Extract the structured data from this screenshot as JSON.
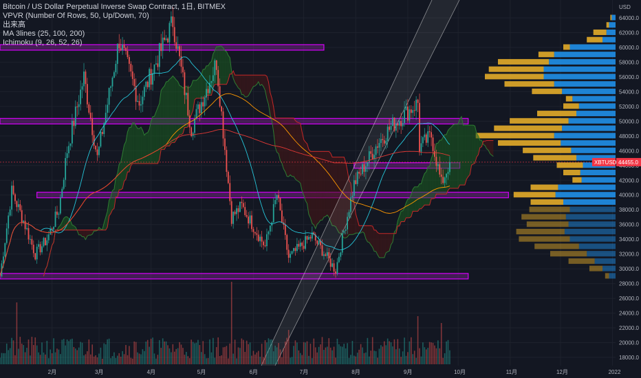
{
  "legend": {
    "title": "Bitcoin / US Dollar Perpetual Inverse Swap Contract, 1日, BITMEX",
    "vpvr": "VPVR (Number Of Rows, 50, Up/Down, 70)",
    "volume": "出来高",
    "ma": "MA 3lines (25, 100, 200)",
    "ichimoku": "Ichimoku (9, 26, 52, 26)"
  },
  "colors": {
    "background": "#131722",
    "up": "#26a69a",
    "down": "#ef5350",
    "zone": "#9c27b0",
    "vpvr_up": "#2196f3",
    "vpvr_down": "#f0b429",
    "ma25": "#26c6da",
    "ma100": "#ff9800",
    "ma200": "#e53935",
    "cloud_bull": "#1b5e20",
    "cloud_bear": "#4a1515",
    "channel": "#e0e0e0",
    "current_price_bg": "#f23645"
  },
  "chart_data": {
    "type": "candlestick",
    "symbol": "XBTUSD",
    "current_price": 44455.0,
    "current_price_label": "44455.0",
    "y_unit": "USD",
    "y_ticks": [
      "64000.0",
      "62000.0",
      "60000.0",
      "58000.0",
      "56000.0",
      "54000.0",
      "52000.0",
      "50000.0",
      "48000.0",
      "46000.0",
      "44000.0",
      "42000.0",
      "40000.0",
      "38000.0",
      "36000.0",
      "34000.0",
      "32000.0",
      "30000.0",
      "28000.0",
      "26000.0",
      "24000.0",
      "22000.0",
      "20000.0",
      "18000.0"
    ],
    "ylim": [
      17500,
      66000
    ],
    "x_ticks": [
      "2月",
      "3月",
      "4月",
      "5月",
      "6月",
      "7月",
      "8月",
      "9月",
      "10月",
      "11月",
      "12月",
      "2022"
    ],
    "ohlc_anchor_closes": [
      {
        "date": "2021-01-01",
        "close": 29000
      },
      {
        "date": "2021-01-08",
        "close": 40500
      },
      {
        "date": "2021-01-15",
        "close": 36500
      },
      {
        "date": "2021-01-22",
        "close": 32000
      },
      {
        "date": "2021-01-29",
        "close": 34000
      },
      {
        "date": "2021-02-05",
        "close": 38000
      },
      {
        "date": "2021-02-10",
        "close": 46000
      },
      {
        "date": "2021-02-20",
        "close": 56000
      },
      {
        "date": "2021-02-28",
        "close": 45000
      },
      {
        "date": "2021-03-13",
        "close": 61000
      },
      {
        "date": "2021-03-25",
        "close": 52500
      },
      {
        "date": "2021-04-14",
        "close": 63500
      },
      {
        "date": "2021-04-25",
        "close": 49000
      },
      {
        "date": "2021-05-10",
        "close": 58000
      },
      {
        "date": "2021-05-19",
        "close": 37000
      },
      {
        "date": "2021-05-25",
        "close": 38500
      },
      {
        "date": "2021-06-08",
        "close": 33000
      },
      {
        "date": "2021-06-15",
        "close": 40000
      },
      {
        "date": "2021-06-22",
        "close": 31500
      },
      {
        "date": "2021-07-06",
        "close": 34500
      },
      {
        "date": "2021-07-20",
        "close": 29800
      },
      {
        "date": "2021-07-31",
        "close": 41500
      },
      {
        "date": "2021-08-14",
        "close": 47000
      },
      {
        "date": "2021-08-23",
        "close": 49500
      },
      {
        "date": "2021-09-07",
        "close": 52500
      },
      {
        "date": "2021-09-08",
        "close": 46500
      },
      {
        "date": "2021-09-15",
        "close": 48000
      },
      {
        "date": "2021-09-21",
        "close": 41500
      },
      {
        "date": "2021-09-26",
        "close": 44455
      }
    ],
    "horizontal_zones": [
      {
        "price": 60000,
        "from": "2021-01-01",
        "to": "2021-07-13"
      },
      {
        "price": 50000,
        "from": "2021-01-01",
        "to": "2021-10-07"
      },
      {
        "price": 44000,
        "from": "2021-07-31",
        "to": "2021-10-02"
      },
      {
        "price": 40000,
        "from": "2021-01-23",
        "to": "2021-10-31"
      },
      {
        "price": 29000,
        "from": "2021-01-01",
        "to": "2021-10-07"
      }
    ],
    "vpvr_profile": [
      {
        "price": 64000,
        "up": 0.03,
        "down": 0.01
      },
      {
        "price": 63000,
        "up": 0.05,
        "down": 0.02
      },
      {
        "price": 62000,
        "up": 0.07,
        "down": 0.1
      },
      {
        "price": 61000,
        "up": 0.1,
        "down": 0.12
      },
      {
        "price": 60000,
        "up": 0.35,
        "down": 0.05
      },
      {
        "price": 59000,
        "up": 0.47,
        "down": 0.12
      },
      {
        "price": 58000,
        "up": 0.51,
        "down": 0.39
      },
      {
        "price": 57000,
        "up": 0.55,
        "down": 0.42
      },
      {
        "price": 56000,
        "up": 0.55,
        "down": 0.45
      },
      {
        "price": 55000,
        "up": 0.47,
        "down": 0.38
      },
      {
        "price": 54000,
        "up": 0.41,
        "down": 0.23
      },
      {
        "price": 53000,
        "up": 0.33,
        "down": 0.05
      },
      {
        "price": 52000,
        "up": 0.28,
        "down": 0.12
      },
      {
        "price": 51000,
        "up": 0.3,
        "down": 0.3
      },
      {
        "price": 50000,
        "up": 0.36,
        "down": 0.45
      },
      {
        "price": 49000,
        "up": 0.41,
        "down": 0.52
      },
      {
        "price": 48000,
        "up": 0.47,
        "down": 0.6
      },
      {
        "price": 47000,
        "up": 0.42,
        "down": 0.48
      },
      {
        "price": 46000,
        "up": 0.34,
        "down": 0.37
      },
      {
        "price": 45000,
        "up": 0.3,
        "down": 0.33
      },
      {
        "price": 44000,
        "up": 0.25,
        "down": 0.2
      },
      {
        "price": 43000,
        "up": 0.27,
        "down": 0.13
      },
      {
        "price": 42000,
        "up": 0.26,
        "down": 0.07
      },
      {
        "price": 41000,
        "up": 0.44,
        "down": 0.21
      },
      {
        "price": 40000,
        "up": 0.46,
        "down": 0.32
      },
      {
        "price": 39000,
        "up": 0.4,
        "down": 0.25
      },
      {
        "price": 38000,
        "up": 0.35,
        "down": 0.31
      },
      {
        "price": 37000,
        "up": 0.38,
        "down": 0.34
      },
      {
        "price": 36000,
        "up": 0.36,
        "down": 0.32
      },
      {
        "price": 35000,
        "up": 0.39,
        "down": 0.37
      },
      {
        "price": 34000,
        "up": 0.35,
        "down": 0.39
      },
      {
        "price": 33000,
        "up": 0.28,
        "down": 0.34
      },
      {
        "price": 32000,
        "up": 0.22,
        "down": 0.28
      },
      {
        "price": 31000,
        "up": 0.16,
        "down": 0.2
      },
      {
        "price": 30000,
        "up": 0.1,
        "down": 0.1
      },
      {
        "price": 29000,
        "up": 0.05,
        "down": 0.03
      }
    ],
    "volume_relative": "bars at bottom, spikes around 2021-01, 2021-05-19, 2021-09-07",
    "grid": true
  }
}
